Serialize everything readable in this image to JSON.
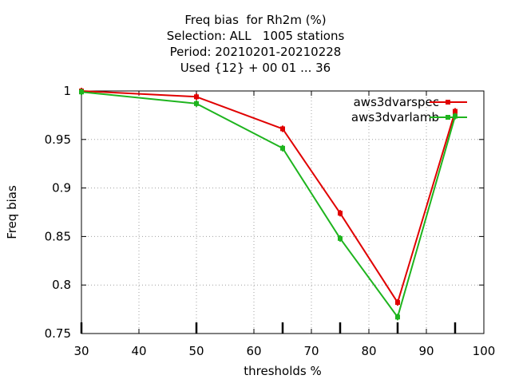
{
  "chart_data": {
    "type": "line",
    "title_lines": [
      "Freq bias  for Rh2m (%)",
      "Selection: ALL   1005 stations",
      "Period: 20210201-20210228",
      "Used {12} + 00 01 ... 36"
    ],
    "xlabel": "thresholds %",
    "ylabel": "Freq bias",
    "xlim": [
      30,
      100
    ],
    "ylim": [
      0.75,
      1.0
    ],
    "xticks": [
      30,
      40,
      50,
      60,
      70,
      80,
      90,
      100
    ],
    "yticks": [
      0.75,
      0.8,
      0.85,
      0.9,
      0.95,
      1.0
    ],
    "ytick_labels": [
      "0.75",
      "0.8",
      "0.85",
      "0.9",
      "0.95",
      "1"
    ],
    "grid": true,
    "legend_position": "top-right",
    "count_tick_x": [
      30,
      50,
      65,
      75,
      85,
      95
    ],
    "series": [
      {
        "name": "aws3dvarspec",
        "color": "#e00000",
        "x": [
          30,
          50,
          65,
          75,
          85,
          95
        ],
        "y": [
          1.0,
          0.994,
          0.961,
          0.874,
          0.782,
          0.979
        ]
      },
      {
        "name": "aws3dvarlamb",
        "color": "#1eb41e",
        "x": [
          30,
          50,
          65,
          75,
          85,
          95
        ],
        "y": [
          0.999,
          0.987,
          0.941,
          0.848,
          0.767,
          0.974
        ]
      }
    ]
  }
}
